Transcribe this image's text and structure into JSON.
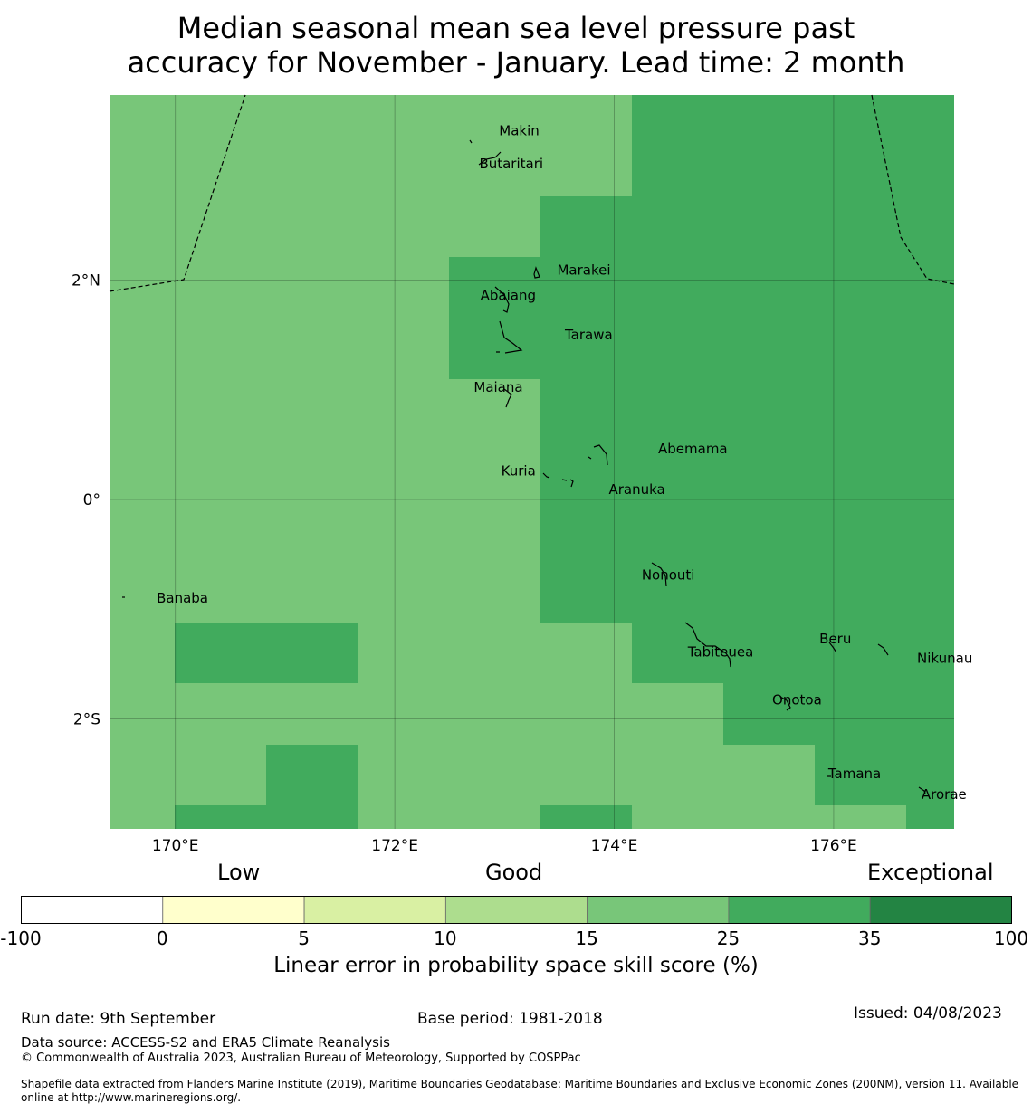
{
  "title": {
    "line1": "Median seasonal mean sea level pressure past",
    "line2": "accuracy for November - January. Lead time: 2 month"
  },
  "map": {
    "lon_range": [
      169.4,
      177.1
    ],
    "lat_range": [
      -3.02,
      3.7
    ],
    "colors": {
      "skill_15_25": "#78c679",
      "skill_25_35": "#41ab5d",
      "skill_35_100": "#238443"
    },
    "grid_lon_labels": [
      "170°E",
      "172°E",
      "174°E",
      "176°E"
    ],
    "grid_lat_labels": [
      "2°N",
      "0°",
      "2°S"
    ],
    "places": [
      {
        "name": "Makin",
        "lon": 172.95,
        "lat": 3.32
      },
      {
        "name": "Butaritari",
        "lon": 172.77,
        "lat": 3.02
      },
      {
        "name": "Marakei",
        "lon": 173.48,
        "lat": 2.05
      },
      {
        "name": "Abaiang",
        "lon": 172.78,
        "lat": 1.82
      },
      {
        "name": "Tarawa",
        "lon": 173.55,
        "lat": 1.46
      },
      {
        "name": "Maiana",
        "lon": 172.72,
        "lat": 0.98
      },
      {
        "name": "Abemama",
        "lon": 174.4,
        "lat": 0.42
      },
      {
        "name": "Kuria",
        "lon": 172.97,
        "lat": 0.22
      },
      {
        "name": "Aranuka",
        "lon": 173.95,
        "lat": 0.05
      },
      {
        "name": "Nonouti",
        "lon": 174.25,
        "lat": -0.73
      },
      {
        "name": "Banaba",
        "lon": 169.83,
        "lat": -0.94
      },
      {
        "name": "Beru",
        "lon": 175.87,
        "lat": -1.31
      },
      {
        "name": "Tabiteuea",
        "lon": 174.67,
        "lat": -1.43
      },
      {
        "name": "Nikunau",
        "lon": 176.76,
        "lat": -1.49
      },
      {
        "name": "Onotoa",
        "lon": 175.44,
        "lat": -1.87
      },
      {
        "name": "Tamana",
        "lon": 175.95,
        "lat": -2.54
      },
      {
        "name": "Arorae",
        "lon": 176.8,
        "lat": -2.73
      }
    ]
  },
  "colorbar": {
    "categories": {
      "low": "Low",
      "good": "Good",
      "exceptional": "Exceptional"
    },
    "bins": [
      {
        "from": "-100",
        "to": "0",
        "color": "#ffffff"
      },
      {
        "from": "0",
        "to": "5",
        "color": "#ffffcc"
      },
      {
        "from": "5",
        "to": "10",
        "color": "#d9f0a3"
      },
      {
        "from": "10",
        "to": "15",
        "color": "#addd8e"
      },
      {
        "from": "15",
        "to": "25",
        "color": "#78c679"
      },
      {
        "from": "25",
        "to": "35",
        "color": "#41ab5d"
      },
      {
        "from": "35",
        "to": "100",
        "color": "#238443"
      }
    ],
    "ticks": [
      "-100",
      "0",
      "5",
      "10",
      "15",
      "25",
      "35",
      "100"
    ],
    "label": "Linear error in probability space skill score (%)"
  },
  "footer": {
    "run_date": "Run date: 9th September",
    "base_period": "Base period: 1981-2018",
    "issued": "Issued: 04/08/2023",
    "data_source": "Data source: ACCESS-S2 and ERA5 Climate Reanalysis",
    "copyright": "© Commonwealth of Australia 2023, Australian Bureau of Meteorology, Supported by COSPPac",
    "shapefile": "Shapefile data extracted from Flanders Marine Institute (2019), Maritime Boundaries Geodatabase: Maritime Boundaries and Exclusive Economic Zones (200NM), version 11. Available online at http://www.marineregions.org/."
  }
}
